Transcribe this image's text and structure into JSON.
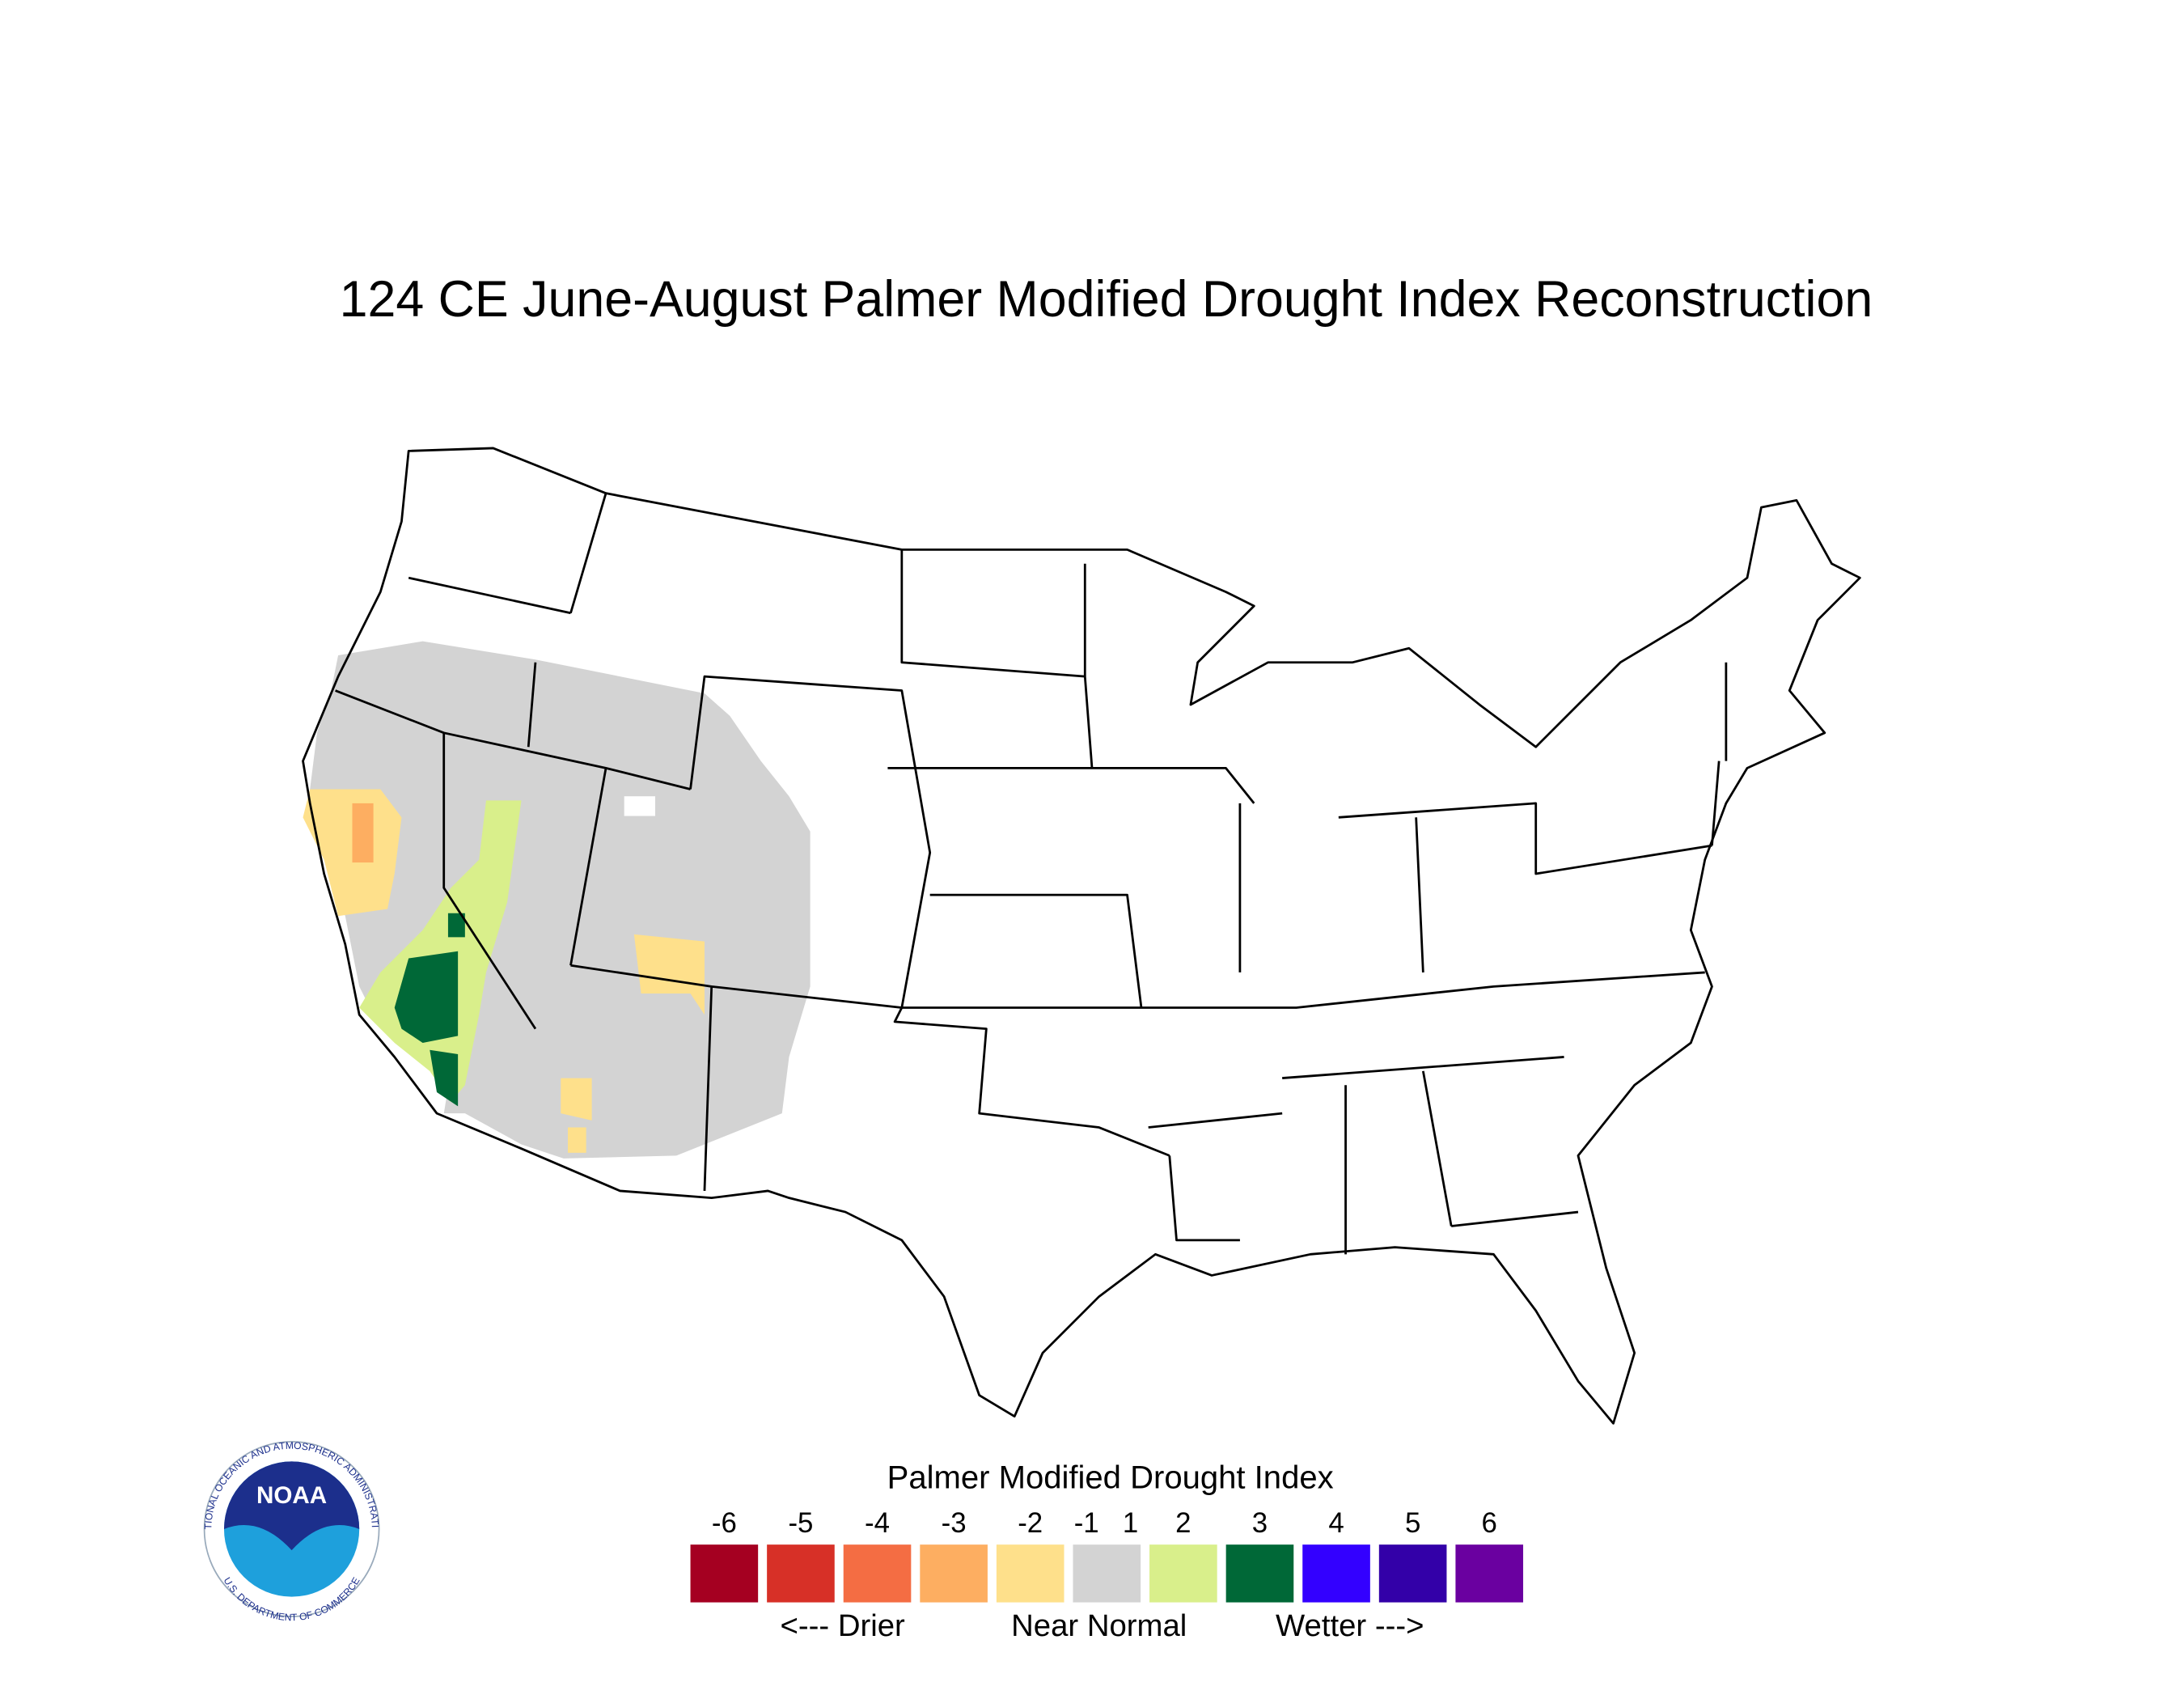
{
  "header": {
    "title": "124 CE  June-August  Palmer Modified Drought Index Reconstruction"
  },
  "legend": {
    "title": "Palmer Modified Drought Index",
    "ticks": [
      -6,
      -5,
      -4,
      -3,
      -2,
      -1,
      1,
      2,
      3,
      4,
      5,
      6
    ],
    "colors": [
      "#a50021",
      "#d73027",
      "#f46d43",
      "#fdae61",
      "#fee08b",
      "#d3d3d3",
      "#d9ef8b",
      "#006837",
      "#3300ff",
      "#3300a8",
      "#6a00a0"
    ],
    "labels": [
      "<--- Drier",
      "Near Normal",
      "Wetter --->"
    ]
  },
  "logo": {
    "name": "NOAA",
    "ring_top": "NATIONAL OCEANIC AND ATMOSPHERIC ADMINISTRATION",
    "ring_bottom": "U.S. DEPARTMENT OF COMMERCE"
  }
}
